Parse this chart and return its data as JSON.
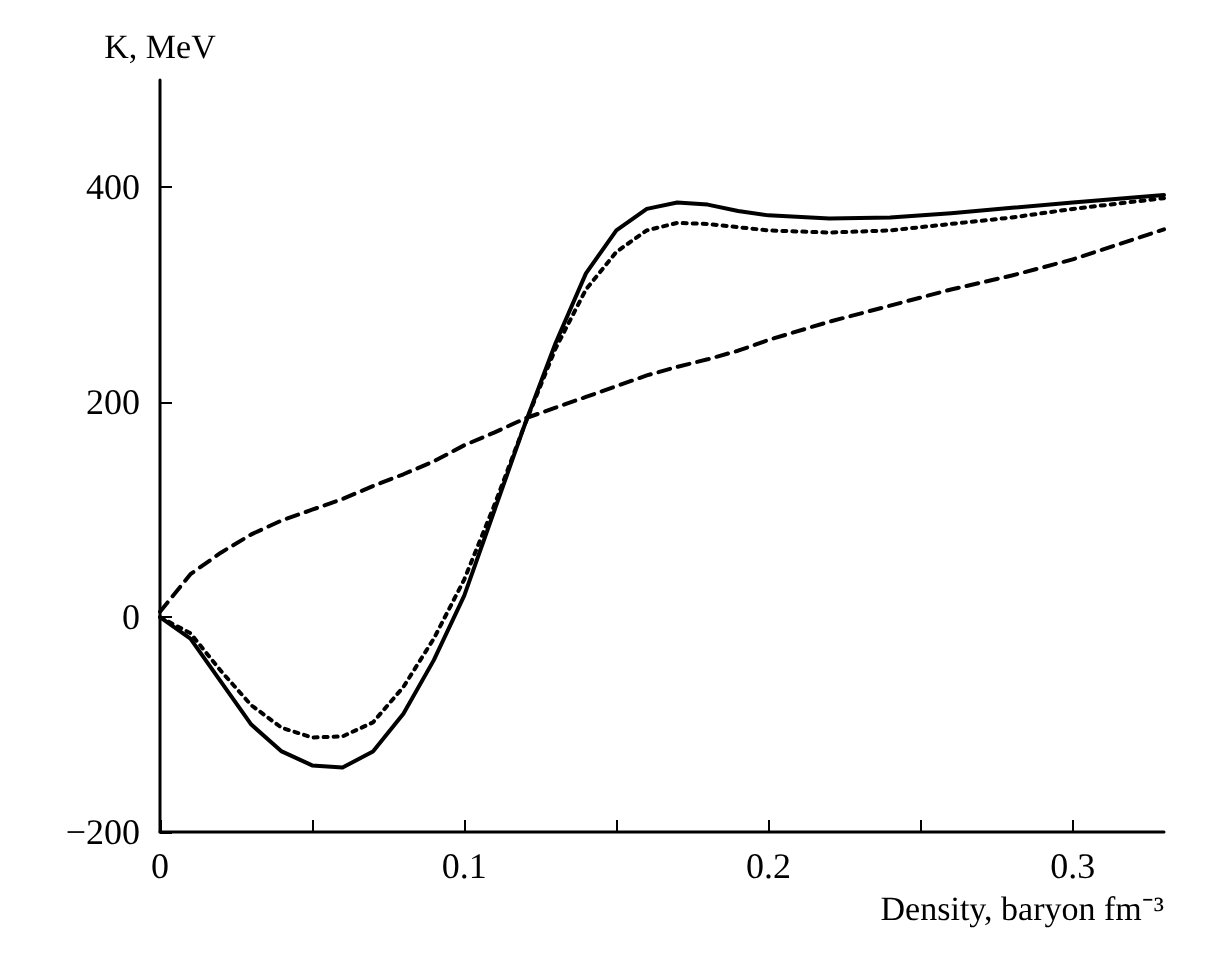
{
  "chart_data": {
    "type": "line",
    "xlabel": "Density, baryon fm⁻³",
    "ylabel": "K, MeV",
    "x": [
      0,
      0.01,
      0.02,
      0.03,
      0.04,
      0.05,
      0.06,
      0.07,
      0.08,
      0.09,
      0.1,
      0.11,
      0.12,
      0.13,
      0.14,
      0.15,
      0.16,
      0.17,
      0.18,
      0.19,
      0.2,
      0.22,
      0.24,
      0.26,
      0.28,
      0.3,
      0.33
    ],
    "series": [
      {
        "color": "#000000",
        "line_style": "solid",
        "values": [
          0,
          -20,
          -60,
          -100,
          -125,
          -138,
          -140,
          -125,
          -90,
          -40,
          20,
          100,
          180,
          255,
          320,
          360,
          380,
          386,
          384,
          378,
          374,
          371,
          372,
          376,
          381,
          386,
          393
        ]
      },
      {
        "color": "#000000",
        "line_style": "dotted",
        "values": [
          0,
          -15,
          -50,
          -82,
          -103,
          -112,
          -111,
          -98,
          -65,
          -20,
          35,
          105,
          180,
          250,
          305,
          340,
          360,
          367,
          366,
          363,
          360,
          358,
          360,
          366,
          372,
          380,
          390
        ]
      },
      {
        "color": "#000000",
        "line_style": "dashed",
        "values": [
          5,
          40,
          60,
          77,
          90,
          100,
          110,
          122,
          133,
          145,
          160,
          172,
          185,
          195,
          205,
          215,
          225,
          233,
          240,
          248,
          258,
          275,
          290,
          305,
          318,
          333,
          361
        ]
      }
    ],
    "xlim": [
      0,
      0.33
    ],
    "xticks": [
      0,
      {
        "value": 0.05,
        "label": null
      },
      0.1,
      {
        "value": 0.15,
        "label": null
      },
      0.2,
      {
        "value": 0.25,
        "label": null
      },
      0.3
    ],
    "ylim": [
      -200,
      500
    ],
    "yticks": [
      -200,
      0,
      200,
      400
    ],
    "grid": false,
    "marker": "none"
  }
}
